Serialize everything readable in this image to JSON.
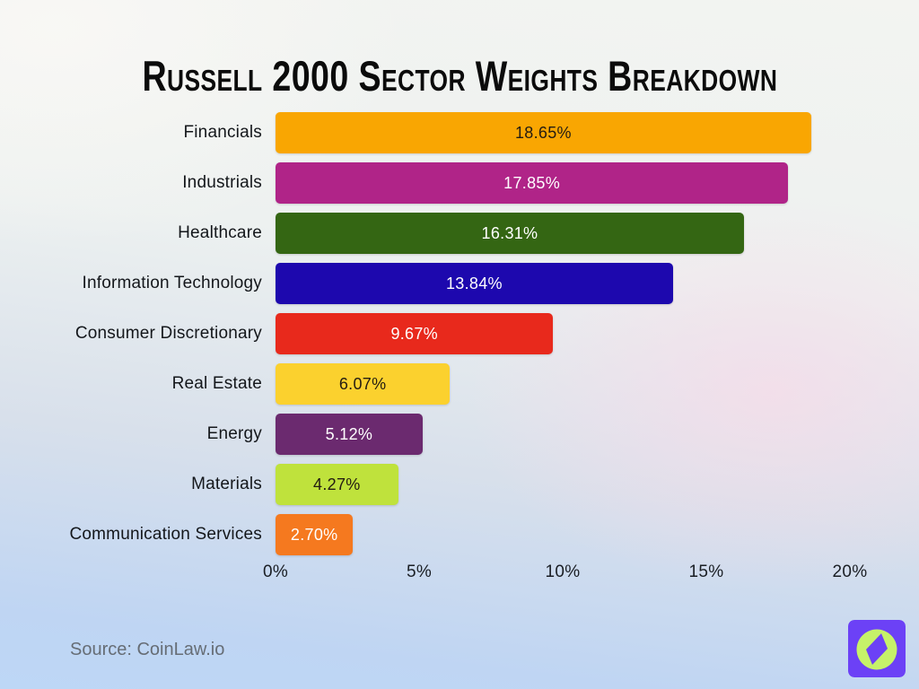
{
  "title": "Russell 2000 Sector Weights Breakdown",
  "source": "Source: CoinLaw.io",
  "logo": {
    "name": "coinlaw-logo",
    "background_color": "#6C41F6",
    "circle_color": "#C6F269",
    "needle_color": "#6C41F6"
  },
  "chart_data": {
    "type": "bar",
    "orientation": "horizontal",
    "title": "Russell 2000 Sector Weights Breakdown",
    "xlabel": "",
    "ylabel": "",
    "xlim": [
      0,
      20
    ],
    "x_ticks": [
      "0%",
      "5%",
      "10%",
      "15%",
      "20%"
    ],
    "x_tick_values": [
      0,
      5,
      10,
      15,
      20
    ],
    "grid": false,
    "value_labels_inside_bars": true,
    "series": [
      {
        "category": "Financials",
        "value": 18.65,
        "label": "18.65%",
        "bar_color": "#F9A602",
        "text_color": "#231C12"
      },
      {
        "category": "Industrials",
        "value": 17.85,
        "label": "17.85%",
        "bar_color": "#B02488",
        "text_color": "#FFFFFF"
      },
      {
        "category": "Healthcare",
        "value": 16.31,
        "label": "16.31%",
        "bar_color": "#346613",
        "text_color": "#FFFFFF"
      },
      {
        "category": "Information Technology",
        "value": 13.84,
        "label": "13.84%",
        "bar_color": "#1D08AE",
        "text_color": "#FFFFFF"
      },
      {
        "category": "Consumer Discretionary",
        "value": 9.67,
        "label": "9.67%",
        "bar_color": "#E8291C",
        "text_color": "#FFFFFF"
      },
      {
        "category": "Real Estate",
        "value": 6.07,
        "label": "6.07%",
        "bar_color": "#FBD12E",
        "text_color": "#231C12"
      },
      {
        "category": "Energy",
        "value": 5.12,
        "label": "5.12%",
        "bar_color": "#6B2A6F",
        "text_color": "#FFFFFF"
      },
      {
        "category": "Materials",
        "value": 4.27,
        "label": "4.27%",
        "bar_color": "#BFE23C",
        "text_color": "#231C12"
      },
      {
        "category": "Communication Services",
        "value": 2.7,
        "label": "2.70%",
        "bar_color": "#F5791F",
        "text_color": "#FFFFFF"
      }
    ]
  }
}
